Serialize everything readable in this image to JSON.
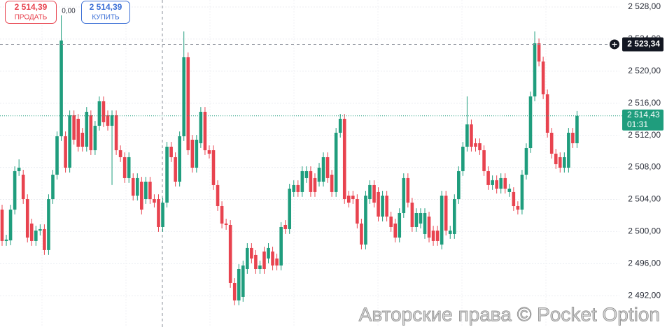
{
  "chart_data": {
    "type": "candlestick",
    "up_color": "#1f9d7d",
    "down_color": "#e8434f",
    "grid": true,
    "ylim": [
      2488.1,
      2528.87
    ],
    "yticks": [
      {
        "value": 2528,
        "label": "2 528,00"
      },
      {
        "value": 2524,
        "label": "2 524,00"
      },
      {
        "value": 2520,
        "label": "2 520,00"
      },
      {
        "value": 2516,
        "label": "2 516,00"
      },
      {
        "value": 2512,
        "label": "2 512,00"
      },
      {
        "value": 2508,
        "label": "2 508,00"
      },
      {
        "value": 2504,
        "label": "2 504,00"
      },
      {
        "value": 2500,
        "label": "2 500,00"
      },
      {
        "value": 2496,
        "label": "2 496,00"
      },
      {
        "value": 2492,
        "label": "2 492,00"
      }
    ],
    "open": [
      2502.74,
      2498.82,
      2498.9,
      2502.74,
      2507.53,
      2507.09,
      2504.04,
      2501.0,
      2498.82,
      2500.12,
      2500.3,
      2497.69,
      2504.04,
      2507.09,
      2511.88,
      2511.88,
      2507.96,
      2514.5,
      2514.06,
      2512.32,
      2510.58,
      2514.5,
      2510.14,
      2513.19,
      2516.24,
      2514.5,
      2513.19,
      2514.5,
      2510.14,
      2509.27,
      2506.66,
      2506.66,
      2504.48,
      2506.22,
      2504.04,
      2506.22,
      2504.04,
      2504.04,
      2500.56,
      2503.61,
      2510.58,
      2509.27,
      2506.22,
      2511.88,
      2521.73,
      2511.45,
      2507.96,
      2511.01,
      2514.93,
      2510.14,
      2510.14,
      2505.79,
      2503.17,
      2501.0,
      2500.82,
      2493.59,
      2491.41,
      2491.85,
      2495.33,
      2497.95,
      2497.08,
      2495.33,
      2497.51,
      2496.64,
      2497.51,
      2496.64,
      2495.77,
      2500.82,
      2500.3,
      2504.92,
      2505.79,
      2504.92,
      2506.66,
      2507.53,
      2506.66,
      2506.22,
      2506.22,
      2509.27,
      2507.09,
      2504.92,
      2512.32,
      2514.06,
      2504.48,
      2504.48,
      2504.04,
      2501.0,
      2498.38,
      2504.04,
      2505.79,
      2504.92,
      2501.87,
      2504.48,
      2501.87,
      2501.0,
      2499.25,
      2502.3,
      2506.66,
      2503.61,
      2500.56,
      2501.0,
      2499.69,
      2501.87,
      2500.12,
      2500.12,
      2498.38,
      2504.48,
      2499.69,
      2499.69,
      2504.04,
      2507.53,
      2510.58,
      2513.36,
      2511.01,
      2511.01,
      2510.14,
      2507.53,
      2505.79,
      2506.4,
      2505.35,
      2506.66,
      2504.92,
      2504.92,
      2503.17,
      2502.74,
      2507.09,
      2510.4,
      2516.85,
      2523.47,
      2521.2,
      2517.11,
      2512.32,
      2509.71,
      2509.27,
      2507.96,
      2507.96,
      2512.32,
      2511.01
    ],
    "high": [
      2503.34,
      2499.6,
      2503.34,
      2508.13,
      2509.0,
      2507.7,
      2504.64,
      2501.6,
      2500.72,
      2500.9,
      2500.9,
      2504.64,
      2507.69,
      2512.48,
      2526.95,
      2512.48,
      2515.1,
      2515.1,
      2514.66,
      2512.92,
      2515.53,
      2515.1,
      2513.79,
      2516.84,
      2516.84,
      2515.1,
      2515.1,
      2515.1,
      2510.74,
      2509.87,
      2509.87,
      2507.26,
      2507.26,
      2506.82,
      2506.82,
      2506.82,
      2504.64,
      2504.64,
      2504.21,
      2511.18,
      2511.18,
      2509.87,
      2512.48,
      2524.95,
      2522.33,
      2512.05,
      2512.05,
      2515.53,
      2515.53,
      2510.74,
      2510.74,
      2506.39,
      2503.77,
      2501.6,
      2501.42,
      2494.19,
      2495.93,
      2496.37,
      2498.55,
      2498.55,
      2497.68,
      2496.37,
      2498.11,
      2498.55,
      2498.11,
      2497.24,
      2501.16,
      2501.42,
      2505.95,
      2506.39,
      2506.39,
      2508.13,
      2508.13,
      2508.13,
      2507.26,
      2508.56,
      2509.87,
      2509.87,
      2507.69,
      2512.92,
      2514.66,
      2514.66,
      2505.08,
      2505.08,
      2504.64,
      2501.6,
      2505.08,
      2506.39,
      2506.39,
      2505.52,
      2505.08,
      2505.08,
      2502.47,
      2501.6,
      2502.9,
      2507.26,
      2507.26,
      2504.21,
      2502.9,
      2502.9,
      2502.9,
      2502.47,
      2500.72,
      2500.72,
      2505.08,
      2505.08,
      2500.72,
      2504.64,
      2508.13,
      2511.18,
      2516.85,
      2513.96,
      2511.61,
      2511.61,
      2510.74,
      2508.13,
      2507.0,
      2507.0,
      2507.26,
      2507.26,
      2505.95,
      2505.52,
      2503.77,
      2507.69,
      2511.0,
      2517.45,
      2524.95,
      2524.07,
      2521.8,
      2517.71,
      2512.92,
      2510.31,
      2509.87,
      2509.87,
      2512.92,
      2512.92,
      2515.03
    ],
    "low": [
      2498.22,
      2498.22,
      2498.3,
      2502.14,
      2506.93,
      2503.44,
      2498.65,
      2498.22,
      2498.22,
      2499.52,
      2497.09,
      2497.09,
      2503.44,
      2506.49,
      2511.28,
      2507.36,
      2507.36,
      2510.85,
      2509.98,
      2509.98,
      2509.98,
      2509.54,
      2509.54,
      2512.59,
      2513.03,
      2512.59,
      2505.8,
      2509.54,
      2508.67,
      2506.06,
      2506.06,
      2503.88,
      2503.88,
      2502.14,
      2503.44,
      2503.44,
      2503.01,
      2499.96,
      2499.96,
      2503.01,
      2508.67,
      2505.62,
      2505.62,
      2511.28,
      2509.54,
      2507.36,
      2507.36,
      2510.41,
      2509.54,
      2509.11,
      2505.19,
      2502.57,
      2500.4,
      2500.22,
      2492.99,
      2490.81,
      2490.81,
      2491.25,
      2494.73,
      2496.04,
      2494.73,
      2494.73,
      2494.73,
      2496.04,
      2495.17,
      2495.17,
      2495.17,
      2499.7,
      2499.7,
      2504.32,
      2504.32,
      2504.32,
      2506.06,
      2504.32,
      2504.32,
      2505.62,
      2505.62,
      2506.06,
      2504.32,
      2504.32,
      2511.72,
      2503.44,
      2503.01,
      2503.44,
      2500.4,
      2497.78,
      2497.78,
      2503.44,
      2503.01,
      2501.27,
      2501.27,
      2501.27,
      2499.96,
      2498.65,
      2498.65,
      2501.7,
      2503.01,
      2499.96,
      2499.96,
      2500.4,
      2499.09,
      2498.65,
      2498.22,
      2498.22,
      2497.78,
      2499.52,
      2499.09,
      2499.09,
      2503.44,
      2506.93,
      2509.98,
      2509.98,
      2509.98,
      2509.54,
      2506.93,
      2505.19,
      2505.19,
      2504.75,
      2504.75,
      2504.75,
      2504.32,
      2502.57,
      2502.14,
      2502.14,
      2506.49,
      2509.8,
      2516.25,
      2520.6,
      2516.51,
      2511.72,
      2509.11,
      2507.8,
      2507.36,
      2507.36,
      2507.36,
      2510.41,
      2510.41
    ],
    "close": [
      2498.82,
      2499.0,
      2502.74,
      2507.53,
      2507.96,
      2504.04,
      2499.25,
      2498.82,
      2500.12,
      2500.3,
      2497.69,
      2504.04,
      2507.09,
      2511.88,
      2523.82,
      2507.96,
      2514.5,
      2511.45,
      2510.58,
      2510.58,
      2514.93,
      2510.14,
      2513.19,
      2516.24,
      2513.63,
      2513.19,
      2514.5,
      2510.14,
      2509.27,
      2506.66,
      2509.27,
      2504.48,
      2506.66,
      2502.74,
      2506.22,
      2504.04,
      2503.61,
      2500.56,
      2503.61,
      2510.58,
      2509.27,
      2506.22,
      2511.88,
      2521.73,
      2510.14,
      2507.96,
      2511.45,
      2514.93,
      2510.14,
      2509.71,
      2505.79,
      2503.17,
      2501.0,
      2500.82,
      2493.59,
      2491.41,
      2495.33,
      2495.77,
      2497.95,
      2496.64,
      2495.33,
      2495.77,
      2495.33,
      2497.95,
      2495.77,
      2495.77,
      2500.56,
      2500.3,
      2505.35,
      2505.79,
      2504.92,
      2507.53,
      2507.53,
      2504.92,
      2504.92,
      2507.96,
      2509.27,
      2506.66,
      2504.92,
      2512.32,
      2514.06,
      2504.04,
      2503.61,
      2504.04,
      2501.0,
      2498.38,
      2504.48,
      2505.79,
      2503.61,
      2501.87,
      2504.48,
      2501.87,
      2500.56,
      2499.25,
      2502.3,
      2506.66,
      2503.61,
      2500.56,
      2502.3,
      2502.3,
      2502.3,
      2499.25,
      2498.82,
      2498.82,
      2504.48,
      2500.12,
      2500.12,
      2504.04,
      2507.53,
      2510.58,
      2513.36,
      2510.58,
      2510.58,
      2510.14,
      2507.53,
      2505.79,
      2506.4,
      2505.35,
      2506.66,
      2505.35,
      2505.35,
      2503.17,
      2502.74,
      2507.09,
      2510.4,
      2516.85,
      2523.47,
      2521.2,
      2517.11,
      2512.32,
      2509.71,
      2508.4,
      2507.96,
      2509.27,
      2512.32,
      2511.01,
      2514.43
    ],
    "crosshair": {
      "value": 2523.34,
      "label": "2 523,34"
    },
    "current_price": {
      "value": 2514.43,
      "label": "2 514,43",
      "timer": "01:31"
    }
  },
  "trade_panel": {
    "sell": {
      "price": "2 514,39",
      "label": "ПРОДАТЬ"
    },
    "spread": "0,00",
    "buy": {
      "price": "2 514,39",
      "label": "КУПИТЬ"
    }
  },
  "watermark": "Авторские права © Pocket Option"
}
